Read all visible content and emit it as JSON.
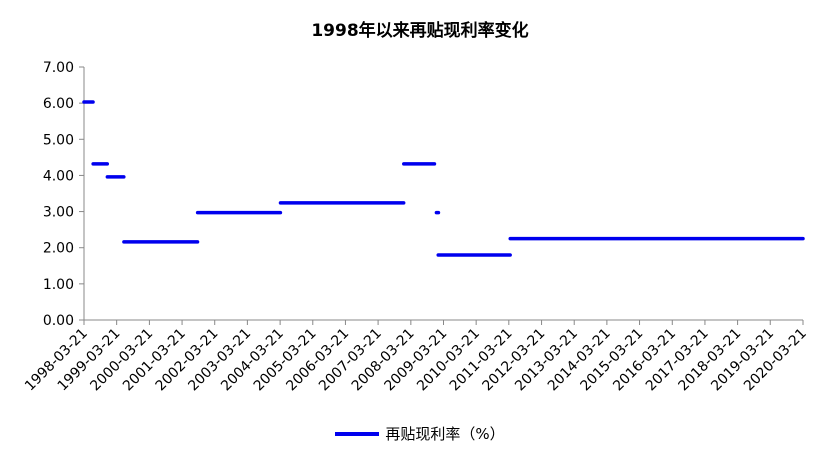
{
  "chart_data": {
    "type": "line",
    "title": "1998年以来再贴现利率变化",
    "xlabel": "",
    "ylabel": "",
    "ylim": [
      0,
      7
    ],
    "y_ticks": [
      "0.00",
      "1.00",
      "2.00",
      "3.00",
      "4.00",
      "5.00",
      "6.00",
      "7.00"
    ],
    "x_ticks": [
      "1998-03-21",
      "1999-03-21",
      "2000-03-21",
      "2001-03-21",
      "2002-03-21",
      "2003-03-21",
      "2004-03-21",
      "2005-03-21",
      "2006-03-21",
      "2007-03-21",
      "2008-03-21",
      "2009-03-21",
      "2010-03-21",
      "2011-03-21",
      "2012-03-21",
      "2013-03-21",
      "2014-03-21",
      "2015-03-21",
      "2016-03-21",
      "2017-03-21",
      "2018-03-21",
      "2019-03-21",
      "2020-03-21"
    ],
    "grid": false,
    "legend_position": "bottom",
    "series": [
      {
        "name": "再贴现利率（%）",
        "color": "#0000ee",
        "segments": [
          {
            "from": "1998-03-21",
            "to": "1998-06-30",
            "value": 6.03
          },
          {
            "from": "1998-07-01",
            "to": "1998-12-06",
            "value": 4.32
          },
          {
            "from": "1998-12-07",
            "to": "1999-06-09",
            "value": 3.96
          },
          {
            "from": "1999-06-10",
            "to": "2001-09-10",
            "value": 2.16
          },
          {
            "from": "2001-09-11",
            "to": "2004-03-24",
            "value": 2.97
          },
          {
            "from": "2004-03-25",
            "to": "2008-01-01",
            "value": 3.24
          },
          {
            "from": "2008-01-02",
            "to": "2008-12-10",
            "value": 4.32
          },
          {
            "from": "2009-01-01",
            "to": "2009-01-20",
            "value": 2.97
          },
          {
            "from": "2009-01-21",
            "to": "2011-04-05",
            "value": 1.8
          },
          {
            "from": "2011-04-06",
            "to": "2020-03-21",
            "value": 2.25
          }
        ]
      }
    ]
  }
}
